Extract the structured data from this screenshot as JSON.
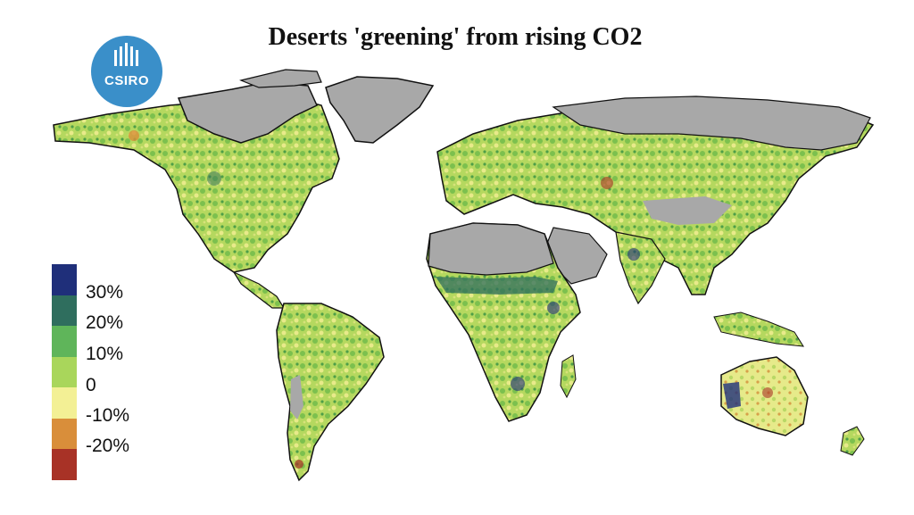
{
  "title": "Deserts 'greening' from rising CO2",
  "logo": {
    "text": "CSIRO",
    "color": "#3a8fc9"
  },
  "legend": {
    "colors": [
      "#1f2f7a",
      "#2f6e5e",
      "#5fb55a",
      "#a9d65b",
      "#f3f095",
      "#d98e3a",
      "#a83226"
    ],
    "labels": [
      "30%",
      "20%",
      "10%",
      "0",
      "-10%",
      "-20%"
    ]
  },
  "map_colors": {
    "no_data": "#a8a8a8",
    "ocean": "#ffffff",
    "outline": "#111111"
  }
}
